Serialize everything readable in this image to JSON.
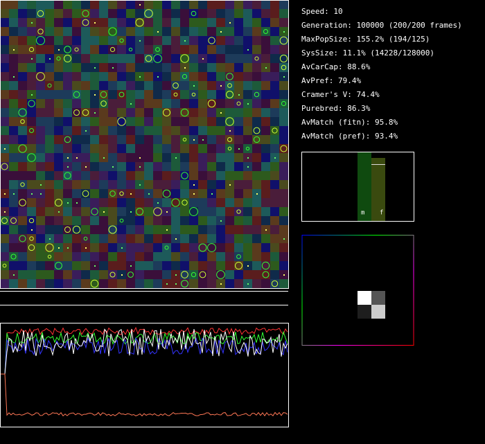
{
  "stats": [
    "Speed: 10",
    "Generation: 100000 (200/200 frames)",
    "MaxPopSize: 155.2% (194/125)",
    "SysSize: 11.1% (14228/128000)",
    "AvCarCap: 88.6%",
    "AvPref: 79.4%",
    "Cramer's V: 74.4%",
    "Purebred: 86.3%",
    "AvMatch (fitn): 95.8%",
    "AvMatch (pref): 93.4%"
  ],
  "gender_panel": {
    "labels": [
      "m",
      "f"
    ]
  }
}
